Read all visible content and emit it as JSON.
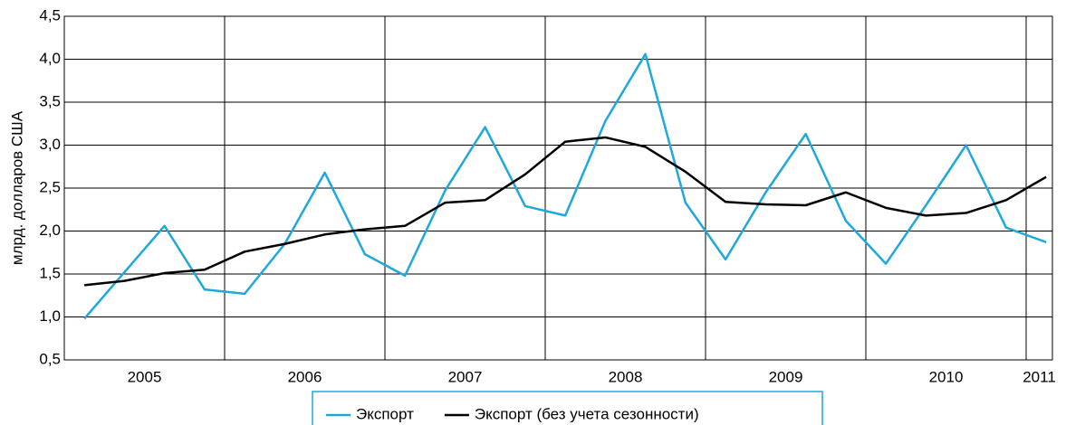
{
  "chart_data": {
    "type": "line",
    "y_label": "млрд. долларов США",
    "categories": [
      "2005",
      null,
      null,
      null,
      "2006",
      null,
      null,
      null,
      "2007",
      null,
      null,
      null,
      "2008",
      null,
      null,
      null,
      "2009",
      null,
      null,
      null,
      "2010",
      null,
      null,
      null,
      "2011"
    ],
    "series": [
      {
        "name": "Экспорт",
        "color": "#1ea8dc",
        "values": [
          0.98,
          1.52,
          2.06,
          1.32,
          1.27,
          1.85,
          2.68,
          1.73,
          1.48,
          2.47,
          3.21,
          2.29,
          2.18,
          3.28,
          4.06,
          2.33,
          1.67,
          2.45,
          3.13,
          2.12,
          1.62,
          2.3,
          3.0,
          2.04,
          1.87
        ]
      },
      {
        "name": "Экспорт (без учета сезонности)",
        "color": "#000000",
        "values": [
          1.37,
          1.42,
          1.51,
          1.55,
          1.76,
          1.85,
          1.96,
          2.02,
          2.06,
          2.33,
          2.36,
          2.66,
          3.04,
          3.09,
          2.98,
          2.69,
          2.34,
          2.31,
          2.3,
          2.45,
          2.27,
          2.18,
          2.21,
          2.36,
          2.63
        ]
      }
    ],
    "ylim": [
      0.5,
      4.5
    ],
    "yticks": [
      {
        "value": 0.5,
        "label": "0,5"
      },
      {
        "value": 1.0,
        "label": "1,0"
      },
      {
        "value": 1.5,
        "label": "1,5"
      },
      {
        "value": 2.0,
        "label": "2,0"
      },
      {
        "value": 2.5,
        "label": "2,5"
      },
      {
        "value": 3.0,
        "label": "3,0"
      },
      {
        "value": 3.5,
        "label": "3,5"
      },
      {
        "value": 4.0,
        "label": "4,0"
      },
      {
        "value": 4.5,
        "label": "4,5"
      }
    ],
    "grid": true,
    "legend": "bottom"
  }
}
